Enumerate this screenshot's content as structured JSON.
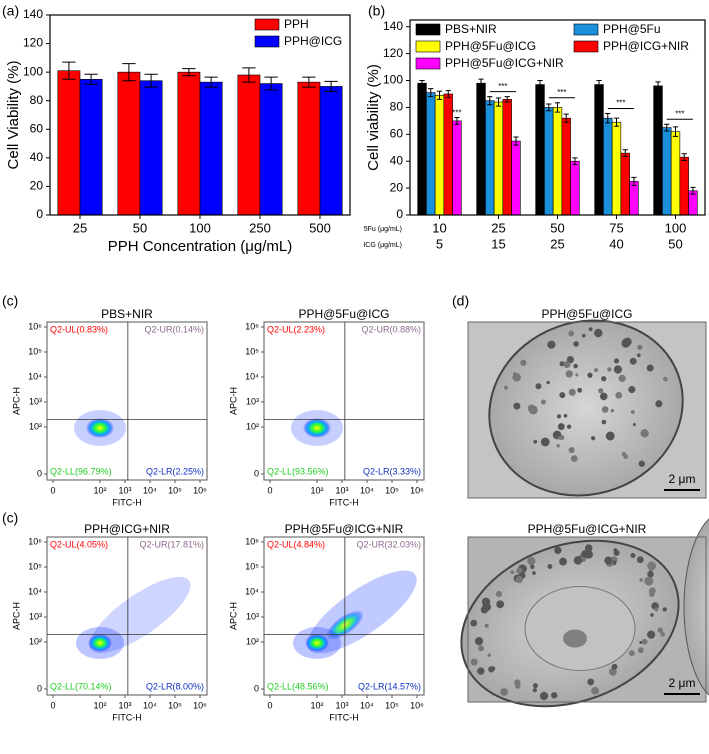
{
  "panel_labels": [
    "(a)",
    "(b)",
    "(c)",
    "(c)",
    "(d)"
  ],
  "chart_data": [
    {
      "type": "bar",
      "ylabel": "Cell Viability (%)",
      "xlabel": "PPH Concentration (μg/mL)",
      "categories": [
        "25",
        "50",
        "100",
        "250",
        "500"
      ],
      "series": [
        {
          "name": "PPH",
          "color": "#ff0000",
          "values": [
            101,
            100,
            100,
            98,
            93
          ],
          "errors": [
            6,
            6,
            2.5,
            5,
            3.5
          ]
        },
        {
          "name": "PPH@ICG",
          "color": "#0000ff",
          "values": [
            95,
            94,
            93,
            92,
            90
          ],
          "errors": [
            3.5,
            4.5,
            3.5,
            4.5,
            3.5
          ]
        }
      ],
      "ylim": [
        0,
        140
      ],
      "yticks": [
        0,
        20,
        40,
        60,
        80,
        100,
        120,
        140
      ],
      "legend": "upper right"
    },
    {
      "type": "bar",
      "ylabel": "Cell viability (%)",
      "categories_label": "5Fu (μg/mL)",
      "categories": [
        "10",
        "25",
        "50",
        "75",
        "100"
      ],
      "categories2_label": "ICG (μg/mL)",
      "categories2": [
        "5",
        "15",
        "25",
        "40",
        "50"
      ],
      "series": [
        {
          "name": "PBS+NIR",
          "color": "#000000",
          "values": [
            98,
            98,
            97,
            97,
            96
          ],
          "errors": [
            2,
            3,
            3,
            3,
            3
          ]
        },
        {
          "name": "PPH@5Fu",
          "color": "#1a8fdc",
          "values": [
            91,
            85,
            80,
            72,
            65
          ],
          "errors": [
            3,
            3,
            2.5,
            3.5,
            2.5
          ]
        },
        {
          "name": "PPH@5Fu@ICG",
          "color": "#ffff00",
          "values": [
            89,
            84,
            80,
            69,
            62
          ],
          "errors": [
            3,
            3,
            3.5,
            3,
            3.5
          ]
        },
        {
          "name": "PPH@ICG+NIR",
          "color": "#ff0000",
          "values": [
            90,
            86,
            72,
            46,
            43
          ],
          "errors": [
            2.5,
            2,
            3,
            2.5,
            2.5
          ]
        },
        {
          "name": "PPH@5Fu@ICG+NIR",
          "color": "#ff00ff",
          "values": [
            70,
            55,
            40,
            25,
            18
          ],
          "errors": [
            2.5,
            3,
            2.5,
            3,
            2.5
          ]
        }
      ],
      "significance": [
        "***",
        "***",
        "***",
        "***",
        "***"
      ],
      "ylim": [
        0,
        145
      ],
      "yticks": [
        0,
        20,
        40,
        60,
        80,
        100,
        120,
        140
      ],
      "legend": "upper"
    },
    {
      "type": "flow",
      "title": "PBS+NIR",
      "xlabel": "FITC-H",
      "ylabel": "APC-H",
      "xscale": "log",
      "yscale": "log",
      "xticks": [
        0,
        {
          "value": 100,
          "label": "10²"
        },
        {
          "value": 1000,
          "label": "10³"
        },
        {
          "value": 10000,
          "label": "10⁴"
        },
        {
          "value": 100000,
          "label": "10⁵"
        },
        {
          "value": 1000000,
          "label": "10⁶"
        }
      ],
      "yticks": [
        0,
        {
          "value": 100,
          "label": "10²"
        },
        {
          "value": 1000,
          "label": "10³"
        },
        {
          "value": 10000,
          "label": "10⁴"
        },
        {
          "value": 100000,
          "label": "10⁵"
        },
        {
          "value": 1000000,
          "label": "10⁶"
        }
      ],
      "gate_x": 1300,
      "gate_y": 200,
      "quadrants": {
        "UL": "Q2-UL(0.83%)",
        "UR": "Q2-UR(0.14%)",
        "LL": "Q2-LL(96.79%)",
        "LR": "Q2-LR(2.25%)"
      }
    },
    {
      "type": "flow",
      "title": "PPH@5Fu@ICG",
      "xlabel": "FITC-H",
      "ylabel": "APC-H",
      "xscale": "log",
      "yscale": "log",
      "xticks": [
        0,
        {
          "value": 100,
          "label": "10²"
        },
        {
          "value": 1000,
          "label": "10³"
        },
        {
          "value": 10000,
          "label": "10⁴"
        },
        {
          "value": 100000,
          "label": "10⁵"
        },
        {
          "value": 1000000,
          "label": "10⁶"
        }
      ],
      "yticks": [
        0,
        {
          "value": 100,
          "label": "10²"
        },
        {
          "value": 1000,
          "label": "10³"
        },
        {
          "value": 10000,
          "label": "10⁴"
        },
        {
          "value": 100000,
          "label": "10⁵"
        },
        {
          "value": 1000000,
          "label": "10⁶"
        }
      ],
      "gate_x": 1300,
      "gate_y": 200,
      "quadrants": {
        "UL": "Q2-UL(2.23%)",
        "UR": "Q2-UR(0.88%)",
        "LL": "Q2-LL(93.56%)",
        "LR": "Q2-LR(3.33%)"
      }
    },
    {
      "type": "flow",
      "title": "PPH@ICG+NIR",
      "xlabel": "FITC-H",
      "ylabel": "APC-H",
      "xscale": "log",
      "yscale": "log",
      "xticks": [
        0,
        {
          "value": 100,
          "label": "10²"
        },
        {
          "value": 1000,
          "label": "10³"
        },
        {
          "value": 10000,
          "label": "10⁴"
        },
        {
          "value": 100000,
          "label": "10⁵"
        },
        {
          "value": 1000000,
          "label": "10⁶"
        }
      ],
      "yticks": [
        0,
        {
          "value": 100,
          "label": "10²"
        },
        {
          "value": 1000,
          "label": "10³"
        },
        {
          "value": 10000,
          "label": "10⁴"
        },
        {
          "value": 100000,
          "label": "10⁵"
        },
        {
          "value": 1000000,
          "label": "10⁶"
        }
      ],
      "gate_x": 1300,
      "gate_y": 200,
      "quadrants": {
        "UL": "Q2-UL(4.05%)",
        "UR": "Q2-UR(17.81%)",
        "LL": "Q2-LL(70.14%)",
        "LR": "Q2-LR(8.00%)"
      }
    },
    {
      "type": "flow",
      "title": "PPH@5Fu@ICG+NIR",
      "xlabel": "FITC-H",
      "ylabel": "APC-H",
      "xscale": "log",
      "yscale": "log",
      "xticks": [
        0,
        {
          "value": 100,
          "label": "10²"
        },
        {
          "value": 1000,
          "label": "10³"
        },
        {
          "value": 10000,
          "label": "10⁴"
        },
        {
          "value": 100000,
          "label": "10⁵"
        },
        {
          "value": 1000000,
          "label": "10⁶"
        }
      ],
      "yticks": [
        0,
        {
          "value": 100,
          "label": "10²"
        },
        {
          "value": 1000,
          "label": "10³"
        },
        {
          "value": 10000,
          "label": "10⁴"
        },
        {
          "value": 100000,
          "label": "10⁵"
        },
        {
          "value": 1000000,
          "label": "10⁶"
        }
      ],
      "gate_x": 1300,
      "gate_y": 200,
      "quadrants": {
        "UL": "Q2-UL(4.84%)",
        "UR": "Q2-UR(32.03%)",
        "LL": "Q2-LL(48.56%)",
        "LR": "Q2-LR(14.57%)"
      }
    }
  ],
  "micrographs": [
    {
      "title": "PPH@5Fu@ICG",
      "scale_bar": "2 μm"
    },
    {
      "title": "PPH@5Fu@ICG+NIR",
      "scale_bar": "2 μm"
    }
  ]
}
